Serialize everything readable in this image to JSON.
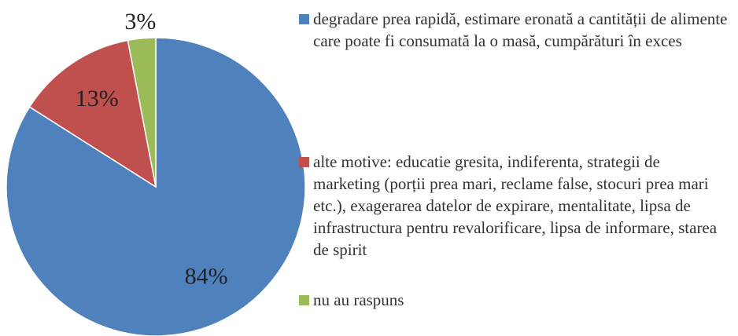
{
  "chart_data": {
    "type": "pie",
    "categories": [
      "degradare prea rapidă, estimare eronată a cantității de alimente care poate fi consumată la o masă, cumpărături în exces",
      "alte motive: educatie gresita, indiferenta, strategii de marketing (porții prea mari, reclame false, stocuri prea mari etc.), exagerarea datelor de expirare, mentalitate, lipsa de infrastructura pentru revalorificare, lipsa de informare, starea de spirit",
      "nu au raspuns"
    ],
    "values": [
      84,
      13,
      3
    ],
    "value_labels": [
      "84%",
      "13%",
      "3%"
    ],
    "colors": [
      "#4f81bd",
      "#c0504d",
      "#9bbb59"
    ],
    "legend": "right"
  }
}
